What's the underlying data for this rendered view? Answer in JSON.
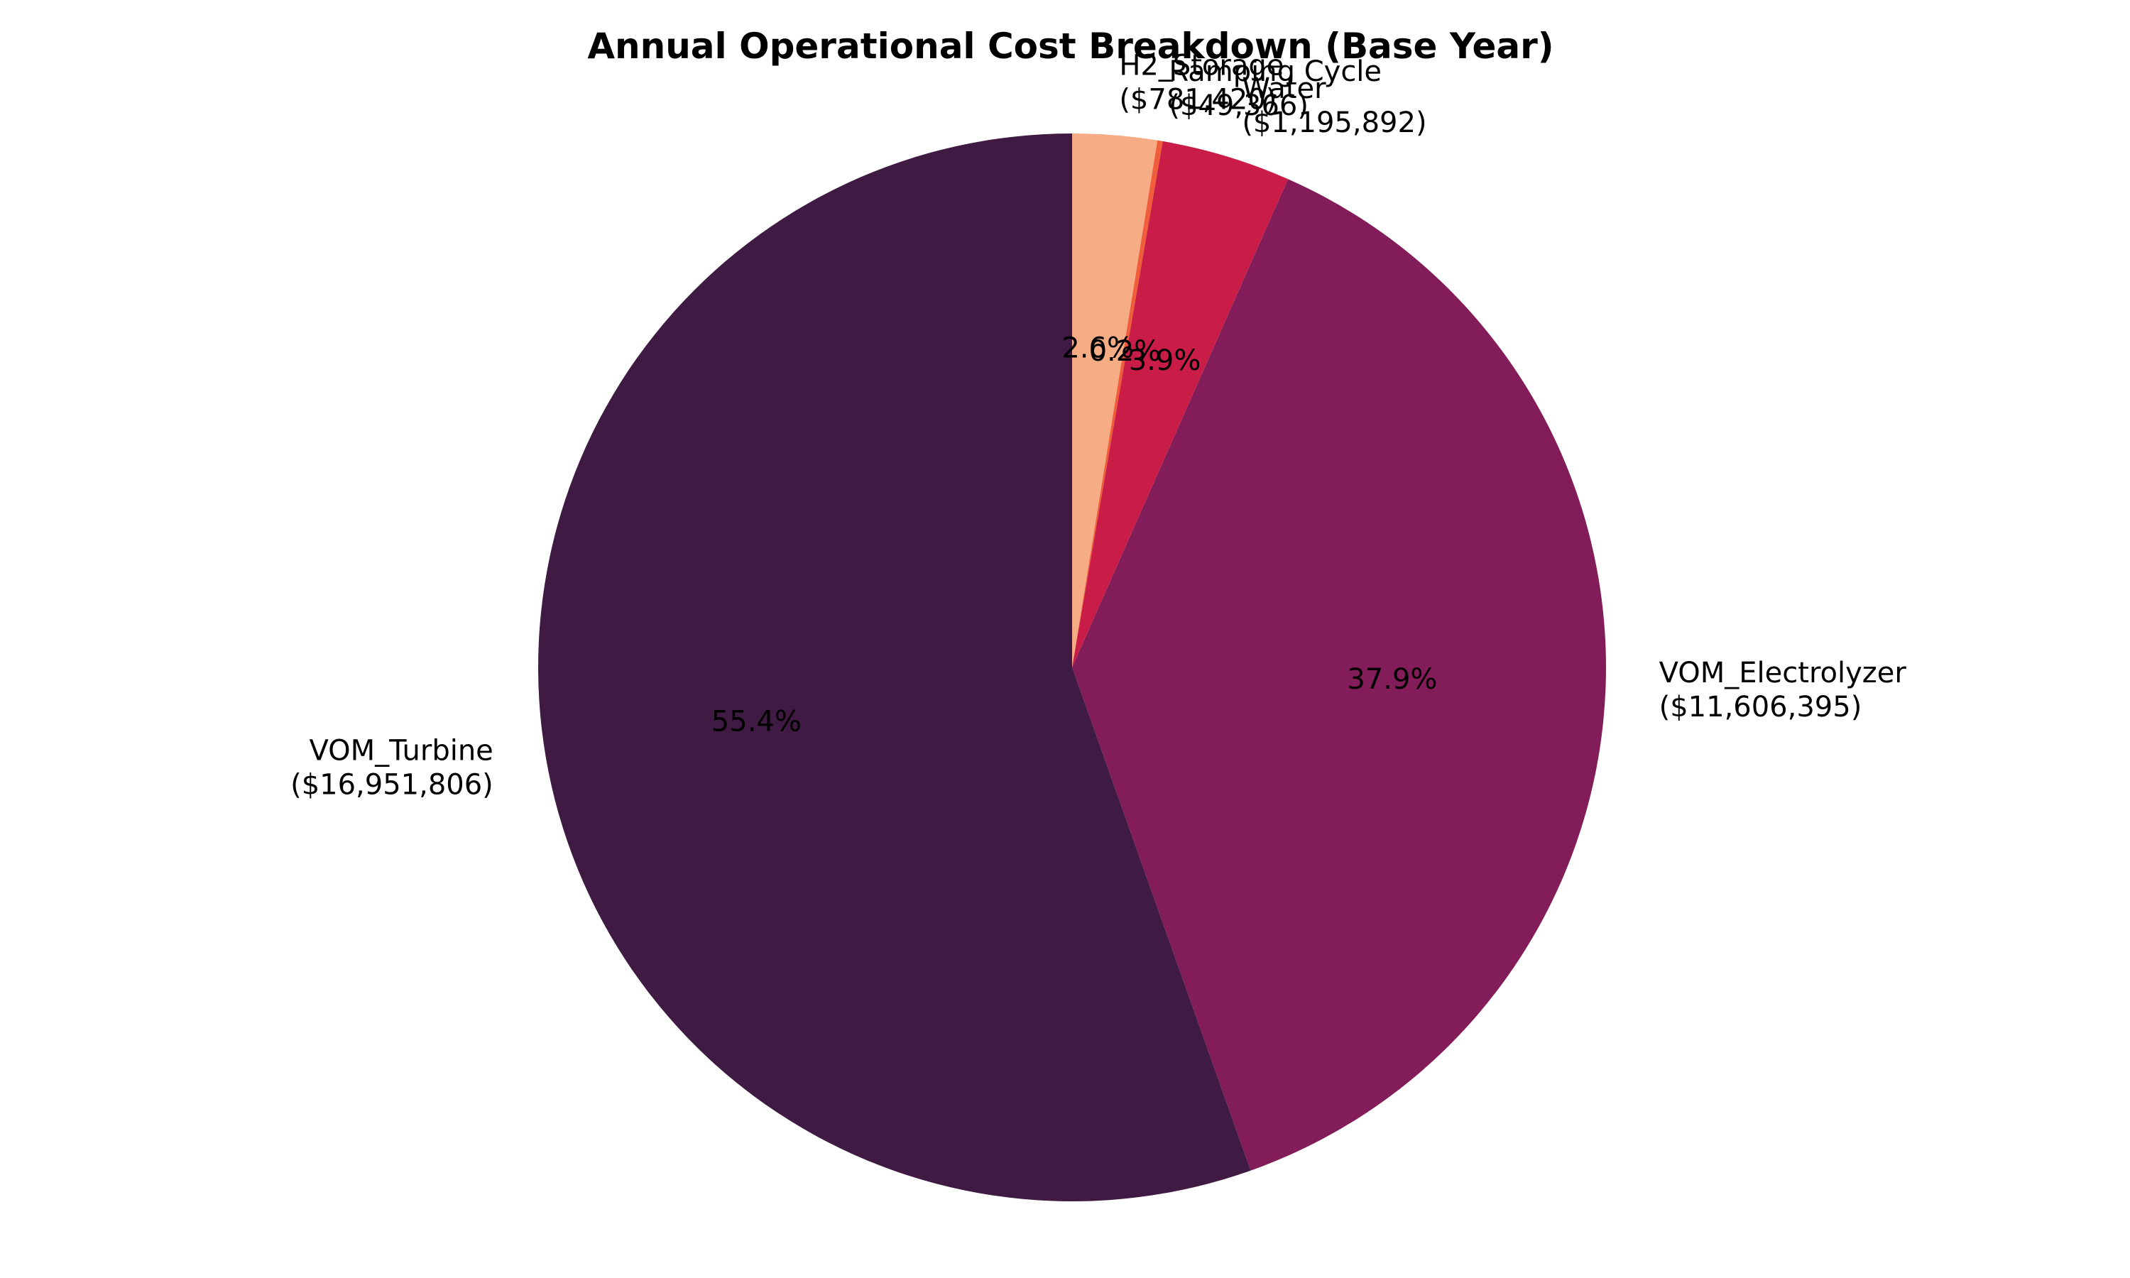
{
  "chart_data": {
    "type": "pie",
    "title": "Annual Operational Cost Breakdown (Base Year)",
    "start_angle_deg": 90,
    "direction": "clockwise",
    "slices": [
      {
        "name": "H2_Storage",
        "value_label": "($781,420)",
        "value": 781420,
        "percent_label": "2.6%",
        "color": "#f6ad85"
      },
      {
        "name": "Ramping Cycle",
        "value_label": "($49,366)",
        "value": 49366,
        "percent_label": "0.2%",
        "color": "#ef5d3b"
      },
      {
        "name": "Water",
        "value_label": "($1,195,892)",
        "value": 1195892,
        "percent_label": "3.9%",
        "color": "#c91d48"
      },
      {
        "name": "VOM_Electrolyzer",
        "value_label": "($11,606,395)",
        "value": 11606395,
        "percent_label": "37.9%",
        "color": "#821d59"
      },
      {
        "name": "VOM_Turbine",
        "value_label": "($16,951,806)",
        "value": 16951806,
        "percent_label": "55.4%",
        "color": "#3f1a42"
      }
    ]
  }
}
